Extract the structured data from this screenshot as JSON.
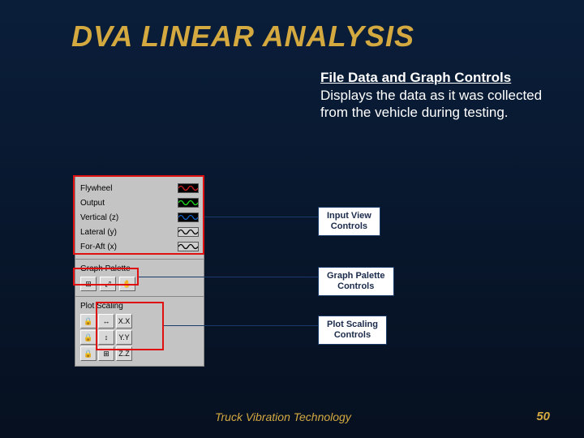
{
  "title": "DVA LINEAR ANALYSIS",
  "subtitle": {
    "heading": "File Data and Graph Controls",
    "body": "Displays the data as it was collected from the vehicle during testing."
  },
  "panel": {
    "input_view": {
      "rows": [
        {
          "label": "Flywheel",
          "wave_color": "#d02020",
          "bg": "#000000"
        },
        {
          "label": "Output",
          "wave_color": "#20e020",
          "bg": "#000000"
        },
        {
          "label": "Vertical (z)",
          "wave_color": "#1060c0",
          "bg": "#000000"
        },
        {
          "label": "Lateral (y)",
          "wave_color": "#000000",
          "bg": "#d0d0d0"
        },
        {
          "label": "For-Aft (x)",
          "wave_color": "#000000",
          "bg": "#d0d0d0"
        }
      ]
    },
    "graph_palette": {
      "label": "Graph Palette",
      "buttons": [
        "⊞",
        "⤢",
        "✋"
      ]
    },
    "plot_scaling": {
      "label": "Plot Scaling",
      "rows": [
        [
          "🔒",
          "↔",
          "X.X"
        ],
        [
          "🔒",
          "↕",
          "Y.Y"
        ],
        [
          "🔒",
          "⊞",
          "Z.Z"
        ]
      ]
    }
  },
  "callouts": {
    "input_view": "Input View Controls",
    "graph_palette": "Graph Palette Controls",
    "plot_scaling": "Plot Scaling Controls"
  },
  "footer": {
    "left": "Truck Vibration Technology",
    "page": "50"
  },
  "style": {
    "title_color": "#d4a940",
    "callout_border": "#1a3a6a",
    "highlight_border": "#e01010"
  }
}
